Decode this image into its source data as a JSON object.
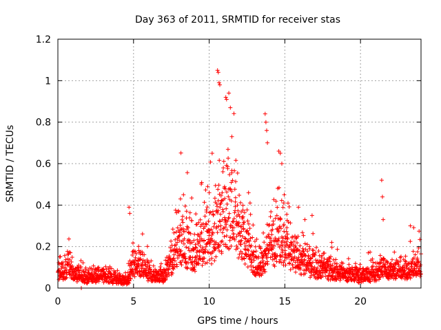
{
  "chart_data": {
    "type": "scatter",
    "title": "Day 363 of 2011, SRMTID for receiver stas",
    "xlabel": "GPS time / hours",
    "ylabel": "SRMTID / TECUs",
    "xlim": [
      0,
      24
    ],
    "ylim": [
      0,
      1.2
    ],
    "xticks": [
      0,
      5,
      10,
      15,
      20
    ],
    "xtick_labels": [
      "0",
      "5",
      "10",
      "15",
      "20"
    ],
    "yticks": [
      0,
      0.2,
      0.4,
      0.6,
      0.8,
      1.0,
      1.2
    ],
    "ytick_labels": [
      "0",
      "0.2",
      "0.4",
      "0.6",
      "0.8",
      "1",
      "1.2"
    ],
    "grid": true,
    "marker": "+",
    "series": [
      {
        "name": "SRMTID",
        "color": "#ff0000",
        "envelope": {
          "description": "approximate typical level of the dense scatter (hours, TECU)",
          "x": [
            0,
            0.5,
            0.8,
            1.0,
            2.0,
            3.0,
            4.0,
            4.6,
            5.0,
            5.5,
            6.0,
            7.0,
            7.5,
            8.0,
            8.5,
            9.0,
            9.5,
            10.0,
            10.5,
            11.0,
            11.5,
            12.0,
            12.5,
            13.0,
            13.5,
            14.0,
            14.5,
            15.0,
            15.5,
            16.0,
            17.0,
            18.0,
            19.0,
            20.0,
            21.0,
            21.5,
            22.0,
            23.0,
            24.0
          ],
          "y": [
            0.08,
            0.1,
            0.14,
            0.08,
            0.06,
            0.07,
            0.05,
            0.04,
            0.14,
            0.12,
            0.08,
            0.07,
            0.15,
            0.28,
            0.25,
            0.2,
            0.25,
            0.3,
            0.35,
            0.45,
            0.42,
            0.35,
            0.25,
            0.15,
            0.12,
            0.25,
            0.28,
            0.3,
            0.2,
            0.15,
            0.12,
            0.1,
            0.08,
            0.07,
            0.08,
            0.12,
            0.1,
            0.1,
            0.12
          ]
        },
        "notable_points": {
          "x": [
            4.7,
            4.75,
            10.55,
            10.6,
            10.65,
            10.7,
            11.1,
            11.15,
            11.3,
            11.4,
            11.5,
            13.7,
            13.75,
            13.8,
            13.85,
            14.6,
            14.7,
            14.8,
            21.4,
            21.45,
            21.5,
            8.1,
            8.3,
            9.9,
            10.0,
            12.6,
            12.7,
            15.9,
            16.8,
            18.1,
            23.3,
            1.55
          ],
          "y": [
            0.39,
            0.36,
            1.05,
            1.04,
            0.99,
            0.98,
            0.92,
            0.91,
            0.94,
            0.87,
            0.73,
            0.84,
            0.8,
            0.76,
            0.7,
            0.66,
            0.65,
            0.6,
            0.52,
            0.44,
            0.33,
            0.43,
            0.45,
            0.49,
            0.46,
            0.46,
            0.41,
            0.39,
            0.35,
            0.22,
            0.3,
            0.0
          ]
        }
      }
    ]
  }
}
